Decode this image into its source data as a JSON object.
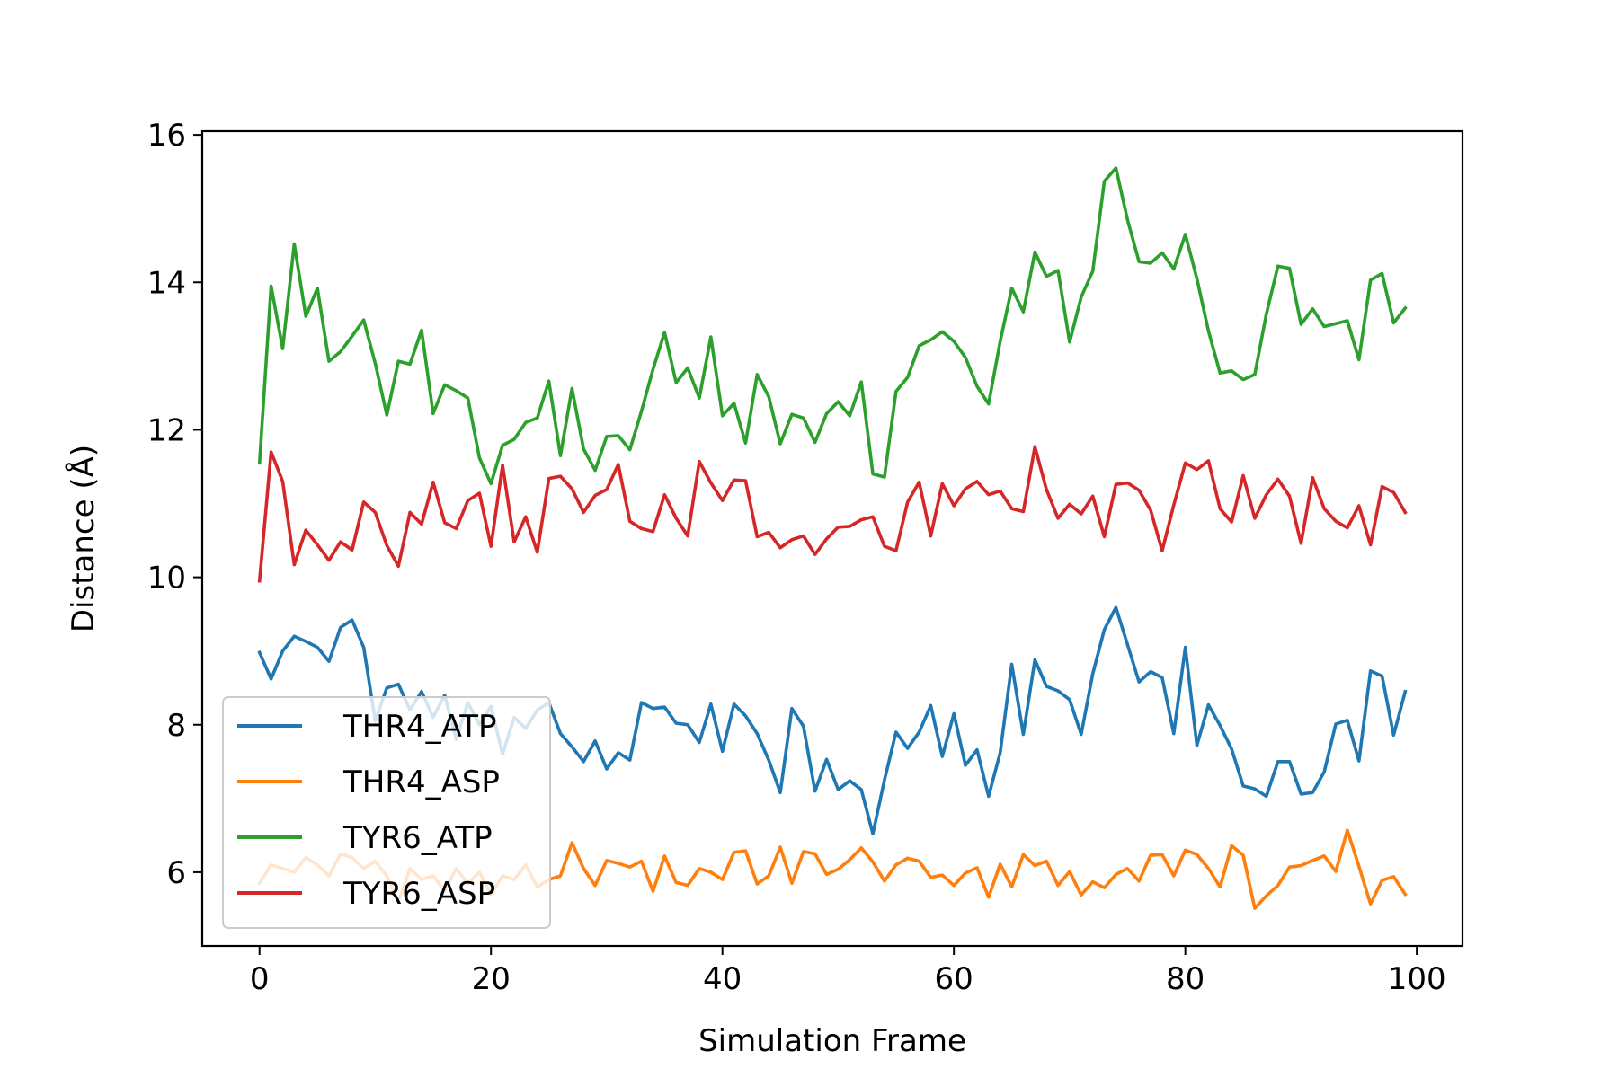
{
  "chart_data": {
    "type": "line",
    "title": "",
    "xlabel": "Simulation Frame",
    "ylabel": "Distance (Å)",
    "xlim": [
      -4.95,
      103.95
    ],
    "ylim": [
      5.0,
      16.05
    ],
    "xticks": [
      0,
      20,
      40,
      60,
      80,
      100
    ],
    "yticks": [
      6,
      8,
      10,
      12,
      14,
      16
    ],
    "xtick_labels": [
      "0",
      "20",
      "40",
      "60",
      "80",
      "100"
    ],
    "ytick_labels": [
      "6",
      "8",
      "10",
      "12",
      "14",
      "16"
    ],
    "grid": false,
    "legend_position": "lower-left",
    "x": [
      0,
      1,
      2,
      3,
      4,
      5,
      6,
      7,
      8,
      9,
      10,
      11,
      12,
      13,
      14,
      15,
      16,
      17,
      18,
      19,
      20,
      21,
      22,
      23,
      24,
      25,
      26,
      27,
      28,
      29,
      30,
      31,
      32,
      33,
      34,
      35,
      36,
      37,
      38,
      39,
      40,
      41,
      42,
      43,
      44,
      45,
      46,
      47,
      48,
      49,
      50,
      51,
      52,
      53,
      54,
      55,
      56,
      57,
      58,
      59,
      60,
      61,
      62,
      63,
      64,
      65,
      66,
      67,
      68,
      69,
      70,
      71,
      72,
      73,
      74,
      75,
      76,
      77,
      78,
      79,
      80,
      81,
      82,
      83,
      84,
      85,
      86,
      87,
      88,
      89,
      90,
      91,
      92,
      93,
      94,
      95,
      96,
      97,
      98,
      99
    ],
    "series": [
      {
        "name": "THR4_ATP",
        "color": "#1f77b4",
        "values": [
          8.98,
          8.62,
          9.0,
          9.2,
          9.13,
          9.05,
          8.86,
          9.32,
          9.42,
          9.05,
          8.05,
          8.5,
          8.55,
          8.2,
          8.45,
          8.1,
          8.4,
          7.8,
          8.3,
          8.0,
          8.25,
          7.6,
          8.1,
          7.95,
          8.2,
          8.3,
          7.88,
          7.7,
          7.5,
          7.78,
          7.4,
          7.62,
          7.52,
          8.3,
          8.22,
          8.24,
          8.02,
          8.0,
          7.76,
          8.28,
          7.64,
          8.28,
          8.12,
          7.88,
          7.52,
          7.08,
          8.22,
          7.98,
          7.1,
          7.53,
          7.12,
          7.24,
          7.12,
          6.52,
          7.25,
          7.9,
          7.68,
          7.9,
          8.26,
          7.57,
          8.15,
          7.45,
          7.66,
          7.03,
          7.62,
          8.82,
          7.87,
          8.88,
          8.52,
          8.46,
          8.34,
          7.87,
          8.69,
          9.29,
          9.59,
          9.09,
          8.58,
          8.72,
          8.64,
          7.88,
          9.05,
          7.72,
          8.27,
          7.99,
          7.67,
          7.17,
          7.13,
          7.03,
          7.5,
          7.5,
          7.06,
          7.08,
          7.36,
          8.01,
          8.06,
          7.51,
          8.73,
          8.66,
          7.86,
          8.45
        ]
      },
      {
        "name": "THR4_ASP",
        "color": "#ff7f0e",
        "values": [
          5.85,
          6.1,
          6.05,
          6.0,
          6.2,
          6.1,
          5.95,
          6.25,
          6.2,
          6.05,
          6.15,
          5.95,
          5.6,
          6.05,
          5.9,
          5.95,
          5.75,
          6.05,
          5.85,
          6.0,
          5.7,
          5.95,
          5.9,
          6.1,
          5.8,
          5.9,
          5.95,
          6.4,
          6.05,
          5.82,
          6.16,
          6.12,
          6.07,
          6.15,
          5.74,
          6.22,
          5.86,
          5.82,
          6.05,
          6.0,
          5.9,
          6.27,
          6.29,
          5.84,
          5.95,
          6.34,
          5.85,
          6.28,
          6.25,
          5.97,
          6.04,
          6.17,
          6.33,
          6.14,
          5.88,
          6.1,
          6.19,
          6.15,
          5.93,
          5.96,
          5.82,
          5.99,
          6.06,
          5.66,
          6.11,
          5.8,
          6.24,
          6.09,
          6.15,
          5.82,
          6.01,
          5.69,
          5.87,
          5.79,
          5.97,
          6.05,
          5.88,
          6.23,
          6.24,
          5.95,
          6.3,
          6.24,
          6.05,
          5.8,
          6.36,
          6.23,
          5.51,
          5.68,
          5.82,
          6.07,
          6.09,
          6.16,
          6.22,
          6.01,
          6.57,
          6.08,
          5.57,
          5.89,
          5.94,
          5.7
        ]
      },
      {
        "name": "TYR6_ATP",
        "color": "#2ca02c",
        "values": [
          11.55,
          13.95,
          13.1,
          14.52,
          13.54,
          13.92,
          12.93,
          13.06,
          13.27,
          13.49,
          12.9,
          12.2,
          12.93,
          12.89,
          13.35,
          12.22,
          12.61,
          12.53,
          12.43,
          11.62,
          11.27,
          11.79,
          11.87,
          12.1,
          12.16,
          12.66,
          11.65,
          12.56,
          11.74,
          11.45,
          11.91,
          11.92,
          11.73,
          12.25,
          12.82,
          13.32,
          12.64,
          12.84,
          12.43,
          13.26,
          12.19,
          12.36,
          11.82,
          12.75,
          12.45,
          11.81,
          12.21,
          12.16,
          11.83,
          12.22,
          12.38,
          12.19,
          12.65,
          11.4,
          11.36,
          12.52,
          12.71,
          13.14,
          13.22,
          13.33,
          13.2,
          12.98,
          12.59,
          12.35,
          13.2,
          13.92,
          13.6,
          14.41,
          14.08,
          14.16,
          13.19,
          13.8,
          14.15,
          15.37,
          15.55,
          14.85,
          14.28,
          14.26,
          14.4,
          14.18,
          14.65,
          14.05,
          13.34,
          12.77,
          12.8,
          12.68,
          12.75,
          13.57,
          14.22,
          14.19,
          13.43,
          13.64,
          13.4,
          13.44,
          13.48,
          12.95,
          14.03,
          14.12,
          13.45,
          13.65
        ]
      },
      {
        "name": "TYR6_ASP",
        "color": "#d62728",
        "values": [
          9.95,
          11.7,
          11.3,
          10.17,
          10.64,
          10.44,
          10.23,
          10.48,
          10.37,
          11.02,
          10.88,
          10.43,
          10.15,
          10.88,
          10.72,
          11.29,
          10.74,
          10.66,
          11.04,
          11.14,
          10.42,
          11.52,
          10.48,
          10.82,
          10.34,
          11.34,
          11.37,
          11.2,
          10.88,
          11.11,
          11.19,
          11.53,
          10.76,
          10.66,
          10.62,
          11.12,
          10.8,
          10.56,
          11.57,
          11.28,
          11.04,
          11.32,
          11.31,
          10.55,
          10.61,
          10.4,
          10.51,
          10.56,
          10.31,
          10.52,
          10.68,
          10.69,
          10.78,
          10.82,
          10.42,
          10.36,
          11.02,
          11.29,
          10.56,
          11.27,
          10.97,
          11.2,
          11.3,
          11.12,
          11.17,
          10.93,
          10.89,
          11.77,
          11.19,
          10.8,
          10.99,
          10.86,
          11.1,
          10.55,
          11.26,
          11.28,
          11.18,
          10.91,
          10.36,
          10.98,
          11.55,
          11.46,
          11.58,
          10.93,
          10.75,
          11.38,
          10.8,
          11.12,
          11.33,
          11.1,
          10.46,
          11.35,
          10.93,
          10.76,
          10.67,
          10.97,
          10.44,
          11.23,
          11.15,
          10.88
        ]
      }
    ]
  }
}
